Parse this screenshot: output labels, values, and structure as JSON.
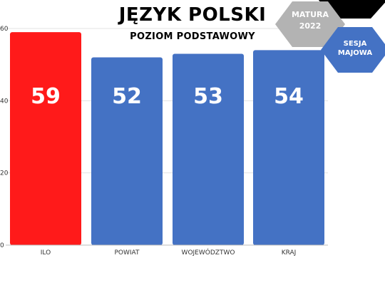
{
  "chart_data": {
    "type": "bar",
    "title": "JĘZYK POLSKI",
    "subtitle": "POZIOM PODSTAWOWY",
    "categories": [
      "ILO",
      "POWIAT",
      "WOJEWÓDZTWO",
      "KRAJ"
    ],
    "values": [
      59,
      52,
      53,
      54
    ],
    "data_labels": [
      "59",
      "52",
      "53",
      "54"
    ],
    "bar_colors": [
      "#ff1a1a",
      "#4472c4",
      "#4472c4",
      "#4472c4"
    ],
    "ylim": [
      0,
      60
    ],
    "yticks": [
      0,
      20,
      40,
      60
    ],
    "grid": true,
    "xlabel": "",
    "ylabel": ""
  },
  "badges": {
    "matura": {
      "line1": "MATURA",
      "line2": "2022",
      "color": "#b3b3b3"
    },
    "sesja": {
      "line1": "SESJA",
      "line2": "MAJOWA",
      "color": "#4472c4"
    },
    "corner_color": "#000000"
  }
}
